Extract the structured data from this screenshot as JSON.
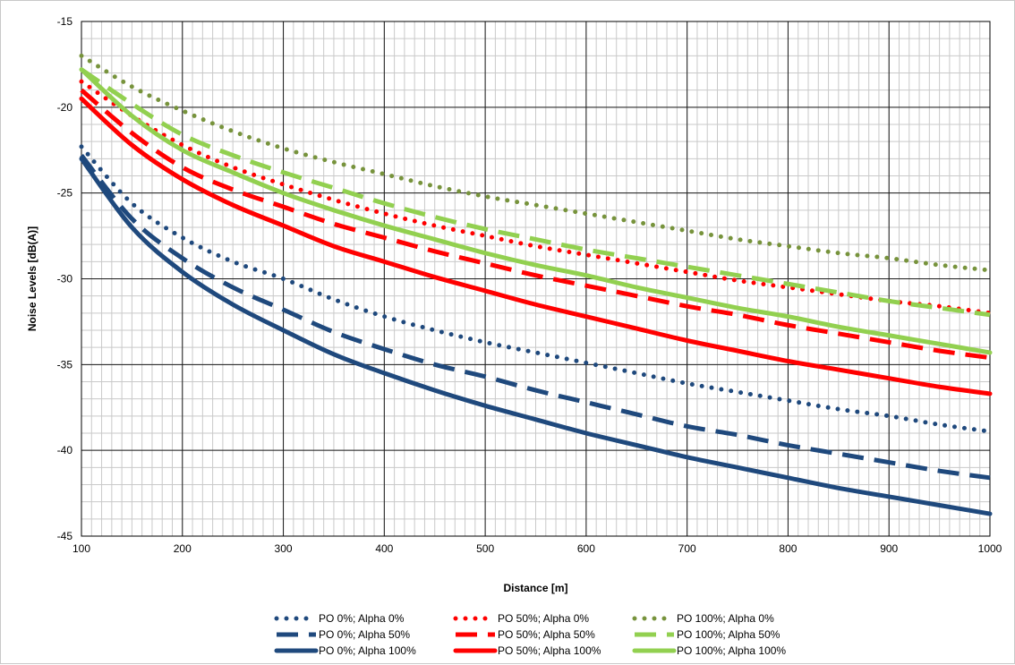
{
  "chart_data": {
    "type": "line",
    "title": "",
    "xlabel": "Distance [m]",
    "ylabel": "Noise Levels [dB(A)]",
    "xlim": [
      100,
      1000
    ],
    "ylim": [
      -45,
      -15
    ],
    "xticks": [
      100,
      200,
      300,
      400,
      500,
      600,
      700,
      800,
      900,
      1000
    ],
    "yticks": [
      -15,
      -20,
      -25,
      -30,
      -35,
      -40,
      -45
    ],
    "grid": "on",
    "legend_position": "bottom",
    "x": [
      100,
      150,
      200,
      250,
      300,
      350,
      400,
      450,
      500,
      550,
      600,
      650,
      700,
      750,
      800,
      850,
      900,
      950,
      1000
    ],
    "series": [
      {
        "name": "PO 0%; Alpha 0%",
        "color": "#1f497d",
        "style": "dotted",
        "values": [
          -22.3,
          -25.6,
          -27.6,
          -29.0,
          -30.0,
          -31.2,
          -32.2,
          -33.0,
          -33.7,
          -34.3,
          -34.9,
          -35.5,
          -36.1,
          -36.6,
          -37.1,
          -37.6,
          -38.0,
          -38.5,
          -38.9
        ]
      },
      {
        "name": "PO 0%; Alpha 50%",
        "color": "#1f497d",
        "style": "dashed",
        "values": [
          -22.8,
          -26.5,
          -28.8,
          -30.5,
          -31.8,
          -33.1,
          -34.1,
          -35.0,
          -35.7,
          -36.5,
          -37.2,
          -37.9,
          -38.6,
          -39.1,
          -39.7,
          -40.2,
          -40.7,
          -41.2,
          -41.6
        ]
      },
      {
        "name": "PO 0%;  Alpha 100%",
        "color": "#1f497d",
        "style": "solid",
        "values": [
          -23.0,
          -27.0,
          -29.6,
          -31.5,
          -33.0,
          -34.4,
          -35.5,
          -36.5,
          -37.4,
          -38.2,
          -39.0,
          -39.7,
          -40.4,
          -41.0,
          -41.6,
          -42.2,
          -42.7,
          -43.2,
          -43.7
        ]
      },
      {
        "name": "PO 50%; Alpha 0%",
        "color": "#ff0000",
        "style": "dotted",
        "values": [
          -18.5,
          -20.5,
          -22.2,
          -23.5,
          -24.5,
          -25.4,
          -26.2,
          -26.9,
          -27.5,
          -28.1,
          -28.6,
          -29.1,
          -29.6,
          -30.1,
          -30.5,
          -30.9,
          -31.3,
          -31.6,
          -32.0
        ]
      },
      {
        "name": "PO 50%; Alpha 50%",
        "color": "#ff0000",
        "style": "dashed",
        "values": [
          -19.0,
          -21.5,
          -23.5,
          -24.8,
          -25.8,
          -26.8,
          -27.6,
          -28.4,
          -29.1,
          -29.8,
          -30.4,
          -31.0,
          -31.6,
          -32.1,
          -32.7,
          -33.2,
          -33.7,
          -34.2,
          -34.6
        ]
      },
      {
        "name": "PO 50%; Alpha 100%",
        "color": "#ff0000",
        "style": "solid",
        "values": [
          -19.5,
          -22.2,
          -24.2,
          -25.7,
          -26.9,
          -28.1,
          -29.0,
          -29.9,
          -30.7,
          -31.5,
          -32.2,
          -32.9,
          -33.6,
          -34.2,
          -34.8,
          -35.3,
          -35.8,
          -36.3,
          -36.7
        ]
      },
      {
        "name": "PO 100%; Alpha 0%",
        "color": "#77933c",
        "style": "dotted",
        "values": [
          -17.0,
          -18.8,
          -20.2,
          -21.4,
          -22.4,
          -23.2,
          -23.9,
          -24.6,
          -25.2,
          -25.7,
          -26.2,
          -26.7,
          -27.2,
          -27.7,
          -28.1,
          -28.5,
          -28.8,
          -29.2,
          -29.5
        ]
      },
      {
        "name": "PO 100%; Alpha 50%",
        "color": "#92d050",
        "style": "dashed",
        "values": [
          -17.8,
          -19.8,
          -21.6,
          -22.8,
          -23.8,
          -24.7,
          -25.6,
          -26.4,
          -27.1,
          -27.7,
          -28.3,
          -28.8,
          -29.3,
          -29.8,
          -30.3,
          -30.8,
          -31.3,
          -31.7,
          -32.1
        ]
      },
      {
        "name": "PO 100%; Alpha 100%",
        "color": "#92d050",
        "style": "solid",
        "values": [
          -17.8,
          -20.5,
          -22.5,
          -23.8,
          -25.0,
          -26.0,
          -26.9,
          -27.7,
          -28.5,
          -29.2,
          -29.8,
          -30.5,
          -31.1,
          -31.7,
          -32.2,
          -32.8,
          -33.3,
          -33.8,
          -34.3
        ]
      }
    ]
  }
}
